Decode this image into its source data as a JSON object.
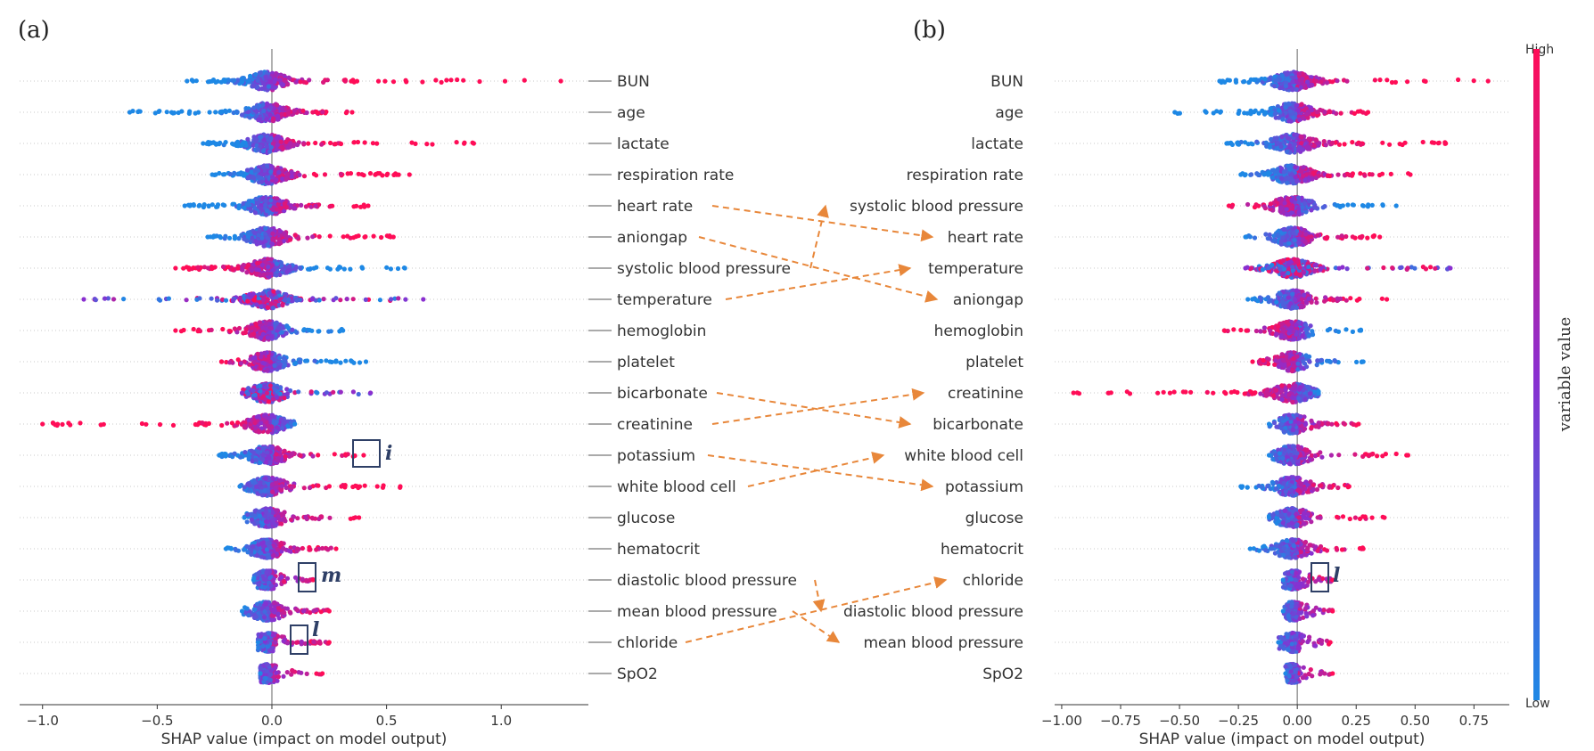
{
  "panels": {
    "a": {
      "letter": "(a)"
    },
    "b": {
      "letter": "(b)"
    }
  },
  "colorbar": {
    "high": "High",
    "low": "Low",
    "label": "variable value",
    "color_high": "#ff0d57",
    "color_mid": "#8a2fd0",
    "color_low": "#1e88e5"
  },
  "arrow_color": "#e8873a",
  "box_color": "#2e3f66",
  "annotations": {
    "i": "i",
    "m": "m",
    "l_a": "l",
    "l_b": "l"
  },
  "chart_data": [
    {
      "type": "scatter",
      "subtype": "shap-beeswarm",
      "panel": "(a)",
      "xlabel": "SHAP value (impact on model output)",
      "xlim": [
        -1.1,
        1.38
      ],
      "xticks": [
        -1.0,
        -0.5,
        0.0,
        0.5,
        1.0
      ],
      "xtick_labels": [
        "−1.0",
        "−0.5",
        "0.0",
        "0.5",
        "1.0"
      ],
      "features": [
        "BUN",
        "age",
        "lactate",
        "respiration rate",
        "heart rate",
        "aniongap",
        "systolic blood pressure",
        "temperature",
        "hemoglobin",
        "platelet",
        "bicarbonate",
        "creatinine",
        "potassium",
        "white blood cell",
        "glucose",
        "hematocrit",
        "diastolic blood pressure",
        "mean blood pressure",
        "chloride",
        "SpO2"
      ],
      "ranges": [
        [
          -0.37,
          1.26
        ],
        [
          -0.62,
          0.35
        ],
        [
          -0.3,
          0.88
        ],
        [
          -0.26,
          0.6
        ],
        [
          -0.38,
          0.42
        ],
        [
          -0.28,
          0.53
        ],
        [
          -0.42,
          0.58
        ],
        [
          -0.82,
          0.66
        ],
        [
          -0.42,
          0.31
        ],
        [
          -0.22,
          0.41
        ],
        [
          -0.13,
          0.43
        ],
        [
          -1.0,
          0.1
        ],
        [
          -0.23,
          0.4
        ],
        [
          -0.14,
          0.56
        ],
        [
          -0.12,
          0.38
        ],
        [
          -0.2,
          0.28
        ],
        [
          -0.08,
          0.18
        ],
        [
          -0.13,
          0.25
        ],
        [
          -0.06,
          0.25
        ],
        [
          -0.05,
          0.22
        ]
      ],
      "high_side": [
        "right",
        "right",
        "right",
        "right",
        "right",
        "right",
        "left",
        "mixed",
        "left",
        "left",
        "mixed",
        "left",
        "right",
        "right",
        "right",
        "right",
        "right",
        "right",
        "right",
        "right"
      ]
    },
    {
      "type": "scatter",
      "subtype": "shap-beeswarm",
      "panel": "(b)",
      "xlabel": "SHAP value (impact on model output)",
      "xlim": [
        -1.03,
        0.9
      ],
      "xticks": [
        -1.0,
        -0.75,
        -0.5,
        -0.25,
        0.0,
        0.25,
        0.5,
        0.75
      ],
      "xtick_labels": [
        "−1.00",
        "−0.75",
        "−0.50",
        "−0.25",
        "0.00",
        "0.25",
        "0.50",
        "0.75"
      ],
      "features": [
        "BUN",
        "age",
        "lactate",
        "respiration rate",
        "systolic blood pressure",
        "heart rate",
        "temperature",
        "aniongap",
        "hemoglobin",
        "platelet",
        "creatinine",
        "bicarbonate",
        "white blood cell",
        "potassium",
        "glucose",
        "hematocrit",
        "chloride",
        "diastolic blood pressure",
        "mean blood pressure",
        "SpO2"
      ],
      "ranges": [
        [
          -0.33,
          0.81
        ],
        [
          -0.52,
          0.3
        ],
        [
          -0.3,
          0.63
        ],
        [
          -0.24,
          0.48
        ],
        [
          -0.29,
          0.42
        ],
        [
          -0.22,
          0.35
        ],
        [
          -0.22,
          0.65
        ],
        [
          -0.21,
          0.38
        ],
        [
          -0.31,
          0.27
        ],
        [
          -0.19,
          0.28
        ],
        [
          -0.95,
          0.09
        ],
        [
          -0.12,
          0.26
        ],
        [
          -0.12,
          0.47
        ],
        [
          -0.24,
          0.22
        ],
        [
          -0.12,
          0.37
        ],
        [
          -0.2,
          0.28
        ],
        [
          -0.06,
          0.15
        ],
        [
          -0.06,
          0.15
        ],
        [
          -0.08,
          0.14
        ],
        [
          -0.05,
          0.15
        ]
      ],
      "high_side": [
        "right",
        "right",
        "right",
        "right",
        "left",
        "right",
        "mixed",
        "right",
        "left",
        "left",
        "left",
        "right",
        "right",
        "right",
        "right",
        "right",
        "right",
        "right",
        "right",
        "right"
      ]
    }
  ]
}
